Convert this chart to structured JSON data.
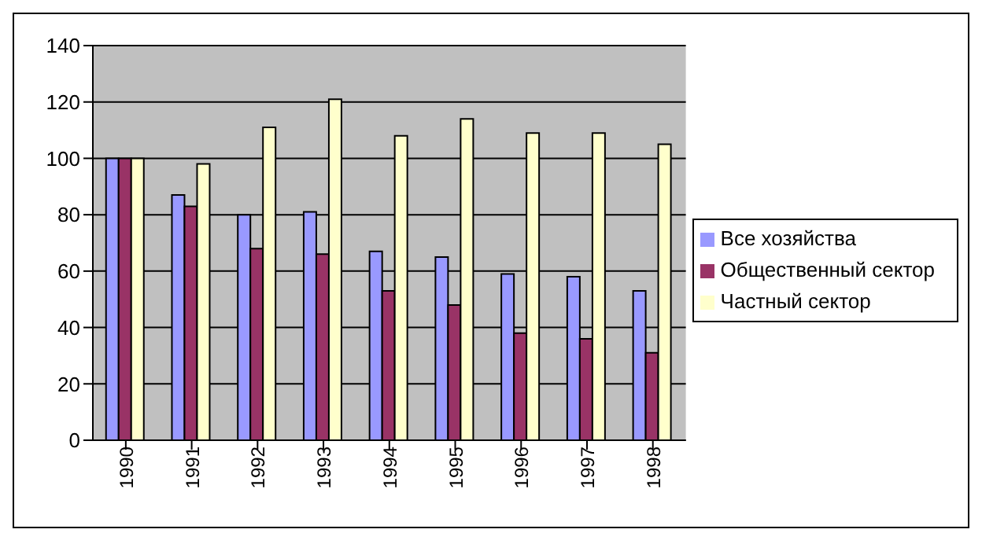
{
  "chart_data": {
    "type": "bar",
    "categories": [
      "1990",
      "1991",
      "1992",
      "1993",
      "1994",
      "1995",
      "1996",
      "1997",
      "1998"
    ],
    "series": [
      {
        "name": "Все хозяйства",
        "color": "#9999ff",
        "values": [
          100,
          87,
          80,
          81,
          67,
          65,
          59,
          58,
          53
        ]
      },
      {
        "name": "Общественный сектор",
        "color": "#993366",
        "values": [
          100,
          83,
          68,
          66,
          53,
          48,
          38,
          36,
          31
        ]
      },
      {
        "name": "Частный сектор",
        "color": "#ffffcc",
        "values": [
          100,
          98,
          111,
          121,
          108,
          114,
          109,
          109,
          105
        ]
      }
    ],
    "ylim": [
      0,
      140
    ],
    "yticks": [
      0,
      20,
      40,
      60,
      80,
      100,
      120,
      140
    ],
    "grid": "y",
    "legend": "right"
  }
}
